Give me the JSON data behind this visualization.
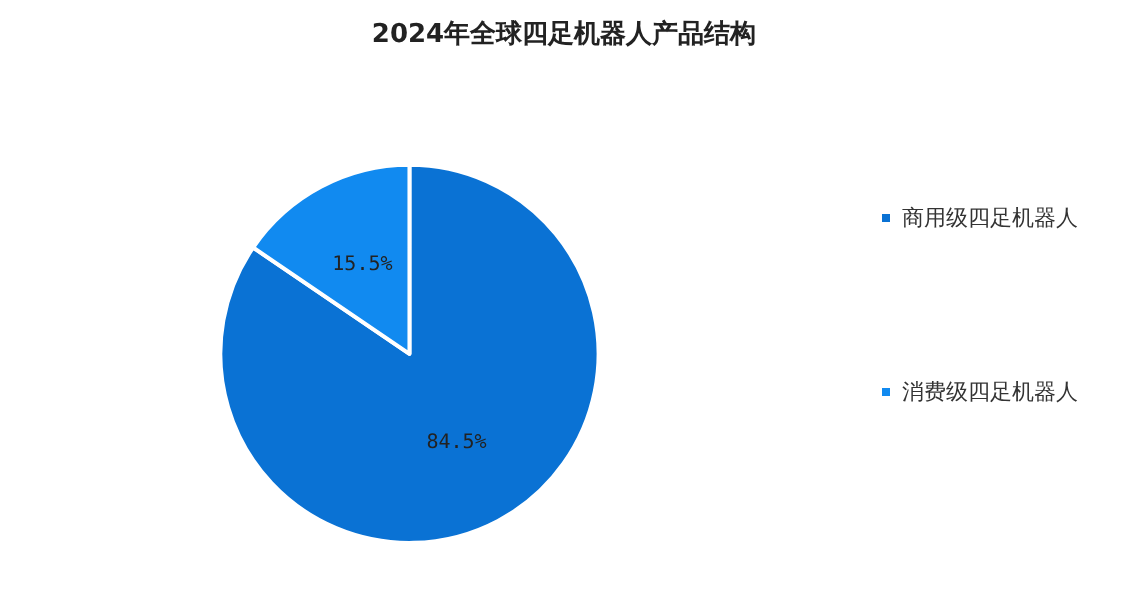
{
  "chart_data": {
    "type": "pie",
    "title": "2024年全球四足机器人产品结构",
    "categories": [
      "商用级四足机器人",
      "消费级四足机器人"
    ],
    "values": [
      84.5,
      15.5
    ],
    "colors": [
      "#0a72d4",
      "#118af0"
    ],
    "value_labels": [
      "84.5%",
      "15.5%"
    ],
    "legend": "right"
  }
}
